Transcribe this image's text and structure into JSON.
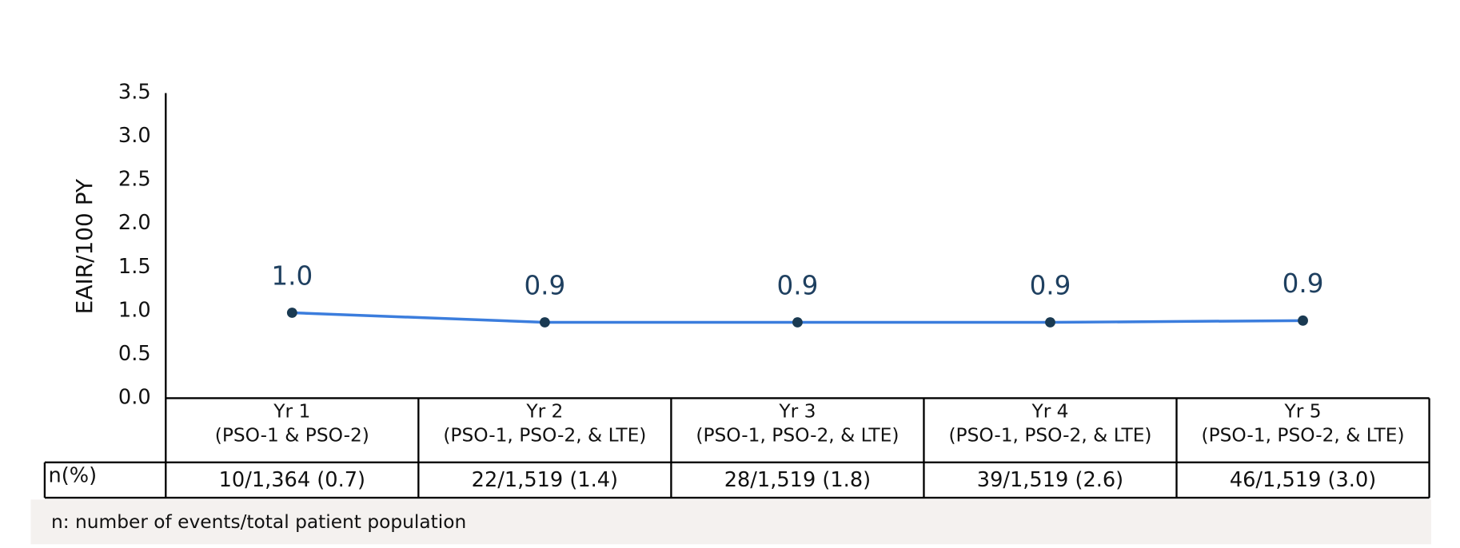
{
  "chart_data": {
    "type": "line",
    "y_label": "EAIR/100 PY",
    "categories": [
      [
        "Yr 1",
        "(PSO-1 & PSO-2)"
      ],
      [
        "Yr 2",
        "(PSO-1, PSO-2, & LTE)"
      ],
      [
        "Yr 3",
        "(PSO-1, PSO-2, & LTE)"
      ],
      [
        "Yr 4",
        "(PSO-1, PSO-2, & LTE)"
      ],
      [
        "Yr 5",
        "(PSO-1, PSO-2, & LTE)"
      ]
    ],
    "series": [
      {
        "color": "#3b7ddd",
        "marker_color": "#1a3a52",
        "values": [
          0.98,
          0.87,
          0.87,
          0.87,
          0.89
        ],
        "value_labels": [
          "1.0",
          "0.9",
          "0.9",
          "0.9",
          "0.9"
        ]
      }
    ],
    "ylim": [
      0,
      3.5
    ],
    "yticks": [
      {
        "value": 0,
        "label": "0.0"
      },
      0.5,
      {
        "value": 1,
        "label": "1.0"
      },
      1.5,
      {
        "value": 2,
        "label": "2.0"
      },
      2.5,
      {
        "value": 3,
        "label": "3.0"
      },
      3.5
    ],
    "table": {
      "row_label": "n(%)",
      "cells": [
        "10/1,364 (0.7)",
        "22/1,519 (1.4)",
        "28/1,519 (1.8)",
        "39/1,519 (2.6)",
        "46/1,519 (3.0)"
      ]
    },
    "footnote": "n: number of events/total patient population"
  }
}
